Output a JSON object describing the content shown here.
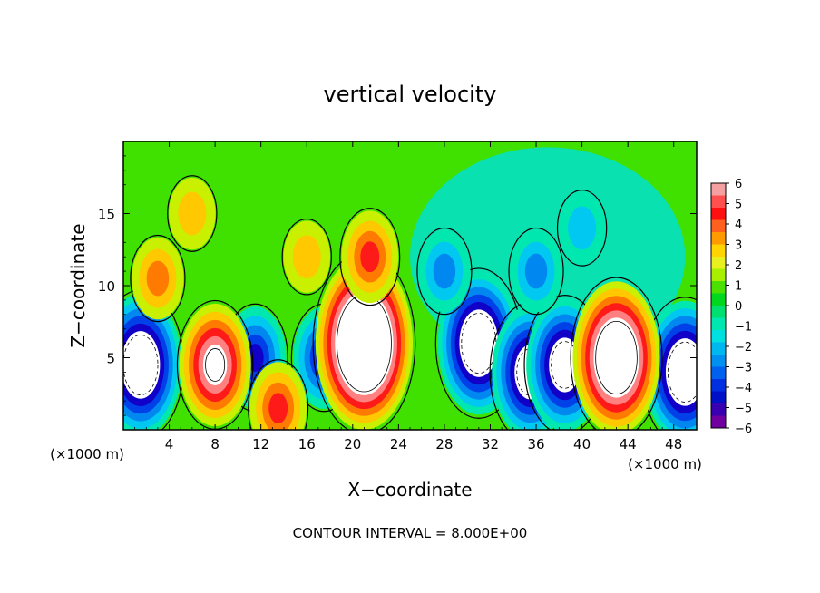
{
  "chart_data": {
    "type": "heatmap",
    "title": "vertical velocity",
    "xlabel": "X−coordinate",
    "ylabel": "Z−coordinate",
    "x_unit_left": "(×1000 m)",
    "x_unit_right": "(×1000 m)",
    "footer": "CONTOUR INTERVAL = 8.000E+00",
    "xlim": [
      0,
      50
    ],
    "ylim": [
      0,
      20
    ],
    "x_ticks": [
      "4",
      "8",
      "12",
      "16",
      "20",
      "24",
      "28",
      "32",
      "36",
      "40",
      "44",
      "48"
    ],
    "y_ticks": [
      "5",
      "10",
      "15"
    ],
    "colorbar": {
      "range": [
        -6,
        6
      ],
      "ticks": [
        "6",
        "5",
        "4",
        "3",
        "2",
        "1",
        "0",
        "−1",
        "−2",
        "−3",
        "−4",
        "−5",
        "−6"
      ],
      "colors": [
        "#f5a0a0",
        "#ff5050",
        "#ff1010",
        "#ff6020",
        "#ff9a00",
        "#ffd400",
        "#e8f020",
        "#a8f000",
        "#4ce000",
        "#00d820",
        "#00e070",
        "#00e8b0",
        "#00e0e0",
        "#00b8f0",
        "#0090f0",
        "#0060f0",
        "#0030e0",
        "#0010c8",
        "#3800b0",
        "#7000a0"
      ]
    },
    "updrafts": [
      {
        "x": 21,
        "z": 6,
        "peak": 12
      },
      {
        "x": 43,
        "z": 5,
        "peak": 10
      },
      {
        "x": 8,
        "z": 4.5,
        "peak": 7
      },
      {
        "x": 13.5,
        "z": 1.5,
        "peak": 4
      },
      {
        "x": 21.5,
        "z": 12,
        "peak": 4
      },
      {
        "x": 3,
        "z": 10.5,
        "peak": 3
      },
      {
        "x": 6,
        "z": 15,
        "peak": 2
      },
      {
        "x": 16,
        "z": 12,
        "peak": 2
      }
    ],
    "downdrafts": [
      {
        "x": 1.5,
        "z": 4.5,
        "peak": -9
      },
      {
        "x": 31,
        "z": 6,
        "peak": -9
      },
      {
        "x": 35.5,
        "z": 4,
        "peak": -8
      },
      {
        "x": 38.5,
        "z": 4.5,
        "peak": -8
      },
      {
        "x": 49,
        "z": 4,
        "peak": -9
      },
      {
        "x": 17.5,
        "z": 5,
        "peak": -5
      },
      {
        "x": 11.5,
        "z": 5,
        "peak": -5
      },
      {
        "x": 36,
        "z": 11,
        "peak": -3
      },
      {
        "x": 40,
        "z": 14,
        "peak": -2
      },
      {
        "x": 28,
        "z": 11,
        "peak": -3
      }
    ]
  }
}
